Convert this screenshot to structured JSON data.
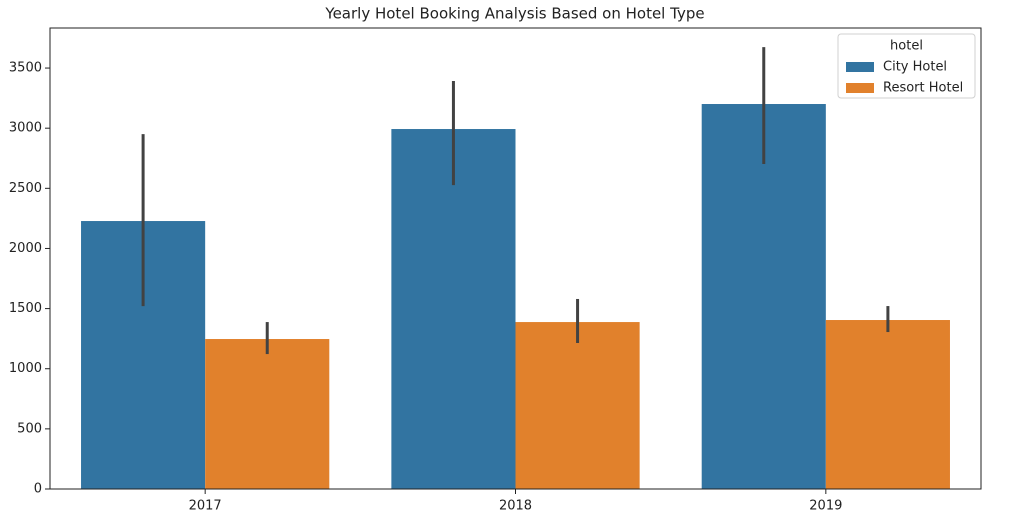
{
  "chart_data": {
    "type": "bar",
    "title": "Yearly Hotel Booking Analysis Based on Hotel Type",
    "categories": [
      "2017",
      "2018",
      "2019"
    ],
    "series": [
      {
        "name": "City Hotel",
        "color": "#3274a1",
        "values": [
          2228,
          2993,
          3201
        ],
        "error_low": [
          1521,
          2527,
          2702
        ],
        "error_high": [
          2951,
          3392,
          3674
        ]
      },
      {
        "name": "Resort Hotel",
        "color": "#e1812c",
        "values": [
          1247,
          1388,
          1405
        ],
        "error_low": [
          1122,
          1214,
          1305
        ],
        "error_high": [
          1388,
          1580,
          1521
        ]
      }
    ],
    "error_color": "#424242",
    "ylim": [
      0,
      3833
    ],
    "yticks": [
      0,
      500,
      1000,
      1500,
      2000,
      2500,
      3000,
      3500
    ],
    "legend_title": "hotel",
    "legend_position": "upper right",
    "grid": false
  }
}
